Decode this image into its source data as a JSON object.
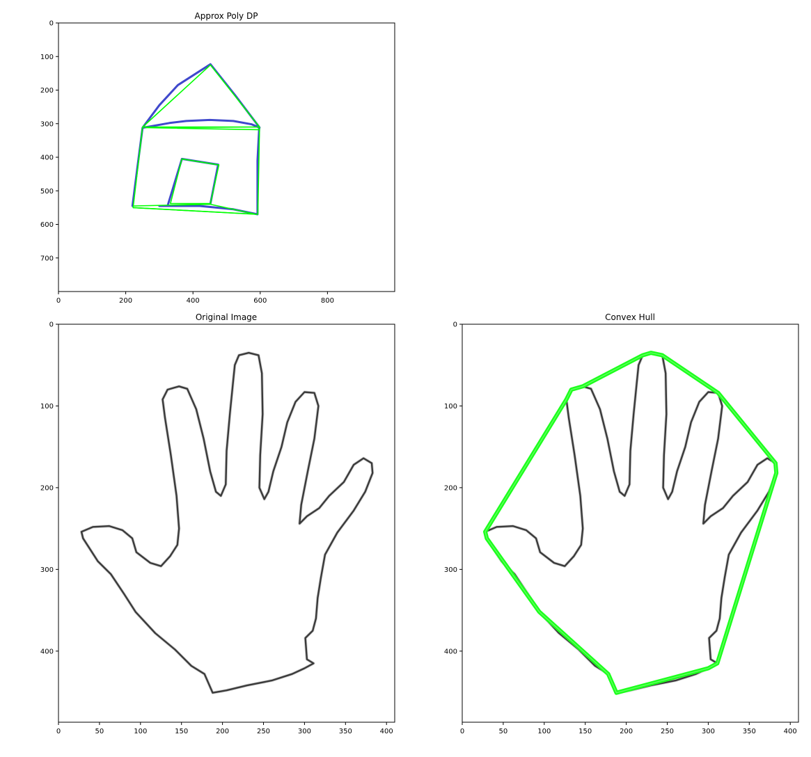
{
  "chart_data": [
    {
      "type": "image",
      "title": "Approx Poly DP",
      "xlim": [
        0,
        1000
      ],
      "ylim": [
        800,
        0
      ],
      "xticks": [
        0,
        200,
        400,
        600,
        800
      ],
      "yticks": [
        0,
        100,
        200,
        300,
        400,
        500,
        600,
        700
      ],
      "colors": {
        "contour": "#3f48cc",
        "approximation": "#00ff00"
      },
      "contours": [
        {
          "name": "house-outline",
          "points": [
            [
              220,
              545
            ],
            [
              236,
              420
            ],
            [
              250,
              312
            ],
            [
              300,
              245
            ],
            [
              355,
              185
            ],
            [
              452,
              123
            ],
            [
              525,
              215
            ],
            [
              597,
              310
            ],
            [
              592,
              410
            ],
            [
              592,
              570
            ],
            [
              520,
              555
            ],
            [
              420,
              545
            ],
            [
              300,
              545
            ]
          ]
        },
        {
          "name": "roof-arc",
          "points": [
            [
              252,
              312
            ],
            [
              330,
              298
            ],
            [
              380,
              292
            ],
            [
              450,
              289
            ],
            [
              520,
              292
            ],
            [
              575,
              302
            ],
            [
              598,
              312
            ]
          ]
        },
        {
          "name": "door",
          "points": [
            [
              325,
              543
            ],
            [
              367,
              405
            ],
            [
              475,
              422
            ],
            [
              452,
              538
            ]
          ]
        }
      ],
      "approximation": [
        {
          "name": "house-polygon",
          "points": [
            [
              222,
              550
            ],
            [
              250,
              310
            ],
            [
              452,
              125
            ],
            [
              598,
              310
            ],
            [
              593,
              570
            ]
          ],
          "closed": true
        },
        {
          "name": "roof-base-polygon",
          "points": [
            [
              250,
              310
            ],
            [
              597,
              310
            ],
            [
              568,
              310
            ],
            [
              260,
              312
            ],
            [
              597,
              318
            ]
          ],
          "closed": false
        },
        {
          "name": "door-polygon",
          "points": [
            [
              333,
              538
            ],
            [
              367,
              405
            ],
            [
              477,
              423
            ],
            [
              452,
              538
            ]
          ],
          "closed": true
        },
        {
          "name": "floor-polygon",
          "points": [
            [
              225,
              545
            ],
            [
              452,
              540
            ],
            [
              588,
              570
            ],
            [
              222,
              550
            ]
          ],
          "closed": false
        }
      ]
    },
    {
      "type": "image",
      "title": "Original Image",
      "xlim": [
        0,
        410
      ],
      "ylim": [
        487,
        0
      ],
      "xticks": [
        0,
        50,
        100,
        150,
        200,
        250,
        300,
        350,
        400
      ],
      "yticks": [
        0,
        100,
        200,
        300,
        400
      ],
      "colors": {
        "outline": "#3a3a3a"
      },
      "outline": [
        [
          188,
          451
        ],
        [
          178,
          428
        ],
        [
          162,
          418
        ],
        [
          142,
          398
        ],
        [
          118,
          378
        ],
        [
          94,
          352
        ],
        [
          80,
          330
        ],
        [
          64,
          306
        ],
        [
          48,
          290
        ],
        [
          30,
          262
        ],
        [
          28,
          254
        ],
        [
          42,
          248
        ],
        [
          62,
          247
        ],
        [
          78,
          252
        ],
        [
          90,
          262
        ],
        [
          95,
          279
        ],
        [
          112,
          292
        ],
        [
          125,
          296
        ],
        [
          136,
          284
        ],
        [
          145,
          270
        ],
        [
          147,
          250
        ],
        [
          144,
          210
        ],
        [
          137,
          160
        ],
        [
          130,
          115
        ],
        [
          127,
          92
        ],
        [
          133,
          80
        ],
        [
          147,
          76
        ],
        [
          157,
          79
        ],
        [
          168,
          104
        ],
        [
          177,
          140
        ],
        [
          185,
          180
        ],
        [
          192,
          205
        ],
        [
          198,
          210
        ],
        [
          204,
          196
        ],
        [
          205,
          155
        ],
        [
          209,
          110
        ],
        [
          213,
          70
        ],
        [
          215,
          50
        ],
        [
          220,
          38
        ],
        [
          232,
          35
        ],
        [
          244,
          38
        ],
        [
          248,
          60
        ],
        [
          249,
          110
        ],
        [
          246,
          160
        ],
        [
          245,
          200
        ],
        [
          251,
          214
        ],
        [
          256,
          205
        ],
        [
          262,
          180
        ],
        [
          272,
          150
        ],
        [
          279,
          120
        ],
        [
          289,
          95
        ],
        [
          300,
          83
        ],
        [
          312,
          84
        ],
        [
          317,
          100
        ],
        [
          312,
          140
        ],
        [
          304,
          180
        ],
        [
          296,
          221
        ],
        [
          294,
          244
        ],
        [
          303,
          235
        ],
        [
          318,
          225
        ],
        [
          330,
          210
        ],
        [
          348,
          193
        ],
        [
          360,
          172
        ],
        [
          372,
          164
        ],
        [
          382,
          170
        ],
        [
          383,
          182
        ],
        [
          374,
          205
        ],
        [
          360,
          228
        ],
        [
          340,
          255
        ],
        [
          325,
          282
        ],
        [
          320,
          310
        ],
        [
          316,
          335
        ],
        [
          314,
          360
        ],
        [
          310,
          375
        ],
        [
          301,
          384
        ],
        [
          303,
          410
        ],
        [
          311,
          415
        ],
        [
          300,
          421
        ],
        [
          285,
          428
        ],
        [
          260,
          436
        ],
        [
          230,
          442
        ],
        [
          205,
          448
        ],
        [
          188,
          451
        ]
      ]
    },
    {
      "type": "image",
      "title": "Convex Hull",
      "xlim": [
        0,
        410
      ],
      "ylim": [
        487,
        0
      ],
      "xticks": [
        0,
        50,
        100,
        150,
        200,
        250,
        300,
        350,
        400
      ],
      "yticks": [
        0,
        100,
        200,
        300,
        400
      ],
      "colors": {
        "outline": "#3a3a3a",
        "hull": "#1dff1d"
      },
      "hull": [
        [
          230,
          35
        ],
        [
          244,
          38
        ],
        [
          312,
          84
        ],
        [
          382,
          170
        ],
        [
          383,
          182
        ],
        [
          311,
          415
        ],
        [
          300,
          421
        ],
        [
          188,
          451
        ],
        [
          178,
          428
        ],
        [
          94,
          352
        ],
        [
          30,
          262
        ],
        [
          28,
          254
        ],
        [
          127,
          92
        ],
        [
          133,
          80
        ],
        [
          147,
          76
        ],
        [
          220,
          38
        ]
      ]
    }
  ]
}
